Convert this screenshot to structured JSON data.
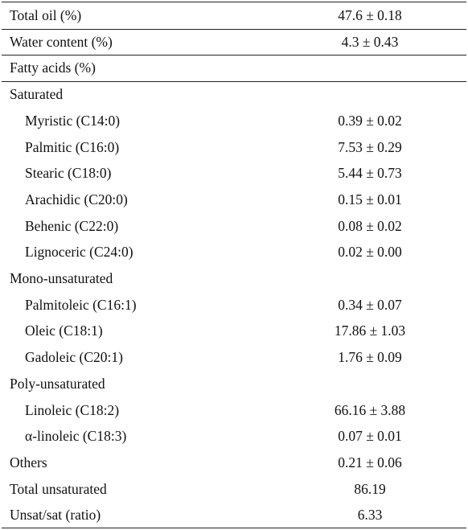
{
  "table": {
    "rows": [
      {
        "label": "Total oil (%)",
        "value": "47.6 ± 0.18"
      },
      {
        "label": "Water content (%)",
        "value": "4.3 ± 0.43"
      },
      {
        "label": "Fatty acids (%)"
      },
      {
        "label": "Saturated",
        "items": [
          {
            "label": "Myristic (C14:0)",
            "value": "0.39 ± 0.02"
          },
          {
            "label": "Palmitic (C16:0)",
            "value": "7.53 ± 0.29"
          },
          {
            "label": "Stearic (C18:0)",
            "value": "5.44 ± 0.73"
          },
          {
            "label": "Arachidic (C20:0)",
            "value": "0.15 ± 0.01"
          },
          {
            "label": "Behenic (C22:0)",
            "value": "0.08 ± 0.02"
          },
          {
            "label": "Lignoceric (C24:0)",
            "value": "0.02 ± 0.00"
          }
        ]
      },
      {
        "label": "Mono-unsaturated",
        "items": [
          {
            "label": "Palmitoleic (C16:1)",
            "value": "0.34 ± 0.07"
          },
          {
            "label": "Oleic (C18:1)",
            "value": "17.86 ± 1.03"
          },
          {
            "label": "Gadoleic (C20:1)",
            "value": "1.76 ± 0.09"
          }
        ]
      },
      {
        "label": "Poly-unsaturated",
        "items": [
          {
            "label": "Linoleic (C18:2)",
            "value": "66.16 ± 3.88"
          },
          {
            "label": "α-linoleic (C18:3)",
            "value": "0.07 ± 0.01"
          }
        ]
      },
      {
        "label": "Others",
        "value": "0.21 ± 0.06"
      },
      {
        "label": "Total unsaturated",
        "value": "86.19"
      },
      {
        "label": "Unsat/sat (ratio)",
        "value": "6.33"
      }
    ]
  }
}
